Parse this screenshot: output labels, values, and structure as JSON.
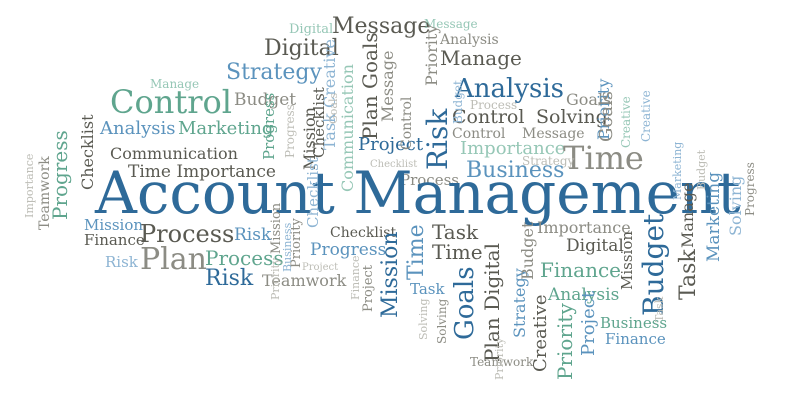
{
  "title": "Account Management",
  "colors": {
    "dark_blue": "#2e6a99",
    "blue": "#5b93bd",
    "light_blue": "#8db4d3",
    "teal": "#5fa58e",
    "light_teal": "#96c7b6",
    "dark_gray": "#5a5a52",
    "gray": "#8c8c84",
    "light_gray": "#bdbdb6"
  },
  "words": [
    {
      "text": "Digital",
      "color": "c5",
      "vertical": false
    },
    {
      "text": "Message",
      "color": "c6",
      "vertical": false
    },
    {
      "text": "Message",
      "color": "c5",
      "vertical": false
    },
    {
      "text": "Digital",
      "color": "c6",
      "vertical": false
    },
    {
      "text": "Analysis",
      "color": "c7",
      "vertical": false
    },
    {
      "text": "Manage",
      "color": "c6",
      "vertical": false
    },
    {
      "text": "Strategy",
      "color": "c2",
      "vertical": false
    },
    {
      "text": "Manage",
      "color": "c5",
      "vertical": false
    },
    {
      "text": "Control",
      "color": "c4",
      "vertical": false
    },
    {
      "text": "Budget",
      "color": "c7",
      "vertical": false
    },
    {
      "text": "Analysis",
      "color": "c1",
      "vertical": false
    },
    {
      "text": "Goals",
      "color": "c7",
      "vertical": false
    },
    {
      "text": "Process",
      "color": "c8",
      "vertical": false
    },
    {
      "text": "Control",
      "color": "c6",
      "vertical": false
    },
    {
      "text": "Solving",
      "color": "c6",
      "vertical": false
    },
    {
      "text": "Analysis",
      "color": "c2",
      "vertical": false
    },
    {
      "text": "Marketing",
      "color": "c4",
      "vertical": false
    },
    {
      "text": "Control",
      "color": "c7",
      "vertical": false
    },
    {
      "text": "Message",
      "color": "c7",
      "vertical": false
    },
    {
      "text": "Project",
      "color": "c1",
      "vertical": false
    },
    {
      "text": "Importance",
      "color": "c5",
      "vertical": false
    },
    {
      "text": "Communication",
      "color": "c6",
      "vertical": false
    },
    {
      "text": "Time",
      "color": "c7",
      "vertical": false
    },
    {
      "text": "Strategy",
      "color": "c8",
      "vertical": false
    },
    {
      "text": "Time Importance",
      "color": "c6",
      "vertical": false
    },
    {
      "text": "Business",
      "color": "c2",
      "vertical": false
    },
    {
      "text": "Process",
      "color": "c7",
      "vertical": false
    },
    {
      "text": "Account Management",
      "color": "c1",
      "vertical": false
    },
    {
      "text": "Mission",
      "color": "c2",
      "vertical": false
    },
    {
      "text": "Finance",
      "color": "c6",
      "vertical": false
    },
    {
      "text": "Process",
      "color": "c6",
      "vertical": false
    },
    {
      "text": "Risk",
      "color": "c2",
      "vertical": false
    },
    {
      "text": "Risk",
      "color": "c3",
      "vertical": false
    },
    {
      "text": "Plan",
      "color": "c7",
      "vertical": false
    },
    {
      "text": "Process",
      "color": "c4",
      "vertical": false
    },
    {
      "text": "Risk",
      "color": "c1",
      "vertical": false
    },
    {
      "text": "Teamwork",
      "color": "c7",
      "vertical": false
    },
    {
      "text": "Progress",
      "color": "c2",
      "vertical": false
    },
    {
      "text": "Checklist",
      "color": "c6",
      "vertical": false
    },
    {
      "text": "Task",
      "color": "c6",
      "vertical": false
    },
    {
      "text": "Time",
      "color": "c6",
      "vertical": false
    },
    {
      "text": "Importance",
      "color": "c7",
      "vertical": false
    },
    {
      "text": "Digital",
      "color": "c6",
      "vertical": false
    },
    {
      "text": "Finance",
      "color": "c4",
      "vertical": false
    },
    {
      "text": "Analysis",
      "color": "c4",
      "vertical": false
    },
    {
      "text": "Task",
      "color": "c2",
      "vertical": false
    },
    {
      "text": "Business",
      "color": "c4",
      "vertical": false
    },
    {
      "text": "Finance",
      "color": "c2",
      "vertical": false
    },
    {
      "text": "Teamwork",
      "color": "c7",
      "vertical": false
    },
    {
      "text": "Project",
      "color": "c8",
      "vertical": false
    },
    {
      "text": "Checklist",
      "color": "c8",
      "vertical": false
    },
    {
      "text": "Plan Goals",
      "color": "c6",
      "vertical": true
    },
    {
      "text": "Priority",
      "color": "c7",
      "vertical": true
    },
    {
      "text": "Task Creative",
      "color": "c3",
      "vertical": true
    },
    {
      "text": "Message",
      "color": "c7",
      "vertical": true
    },
    {
      "text": "Risk",
      "color": "c1",
      "vertical": true
    },
    {
      "text": "Priority",
      "color": "c2",
      "vertical": true
    },
    {
      "text": "Communication",
      "color": "c5",
      "vertical": true
    },
    {
      "text": "Mission",
      "color": "c6",
      "vertical": true
    },
    {
      "text": "Progress",
      "color": "c8",
      "vertical": true
    },
    {
      "text": "Control",
      "color": "c7",
      "vertical": true
    },
    {
      "text": "Checklist",
      "color": "c3",
      "vertical": true
    },
    {
      "text": "Checklist",
      "color": "c6",
      "vertical": true
    },
    {
      "text": "Progress",
      "color": "c4",
      "vertical": true
    },
    {
      "text": "Goals",
      "color": "c7",
      "vertical": true
    },
    {
      "text": "Creative",
      "color": "c5",
      "vertical": true
    },
    {
      "text": "Mission",
      "color": "c1",
      "vertical": true
    },
    {
      "text": "Time",
      "color": "c2",
      "vertical": true
    },
    {
      "text": "Goals",
      "color": "c1",
      "vertical": true
    },
    {
      "text": "Plan Digital",
      "color": "c6",
      "vertical": true
    },
    {
      "text": "Strategy",
      "color": "c2",
      "vertical": true
    },
    {
      "text": "Budget",
      "color": "c7",
      "vertical": true
    },
    {
      "text": "Creative",
      "color": "c6",
      "vertical": true
    },
    {
      "text": "Priority",
      "color": "c4",
      "vertical": true
    },
    {
      "text": "Project",
      "color": "c2",
      "vertical": true
    },
    {
      "text": "Solving",
      "color": "c7",
      "vertical": true
    },
    {
      "text": "Budget",
      "color": "c1",
      "vertical": true
    },
    {
      "text": "Mission",
      "color": "c6",
      "vertical": true
    },
    {
      "text": "Task",
      "color": "c6",
      "vertical": true
    },
    {
      "text": "Manage",
      "color": "c6",
      "vertical": true
    },
    {
      "text": "Marketing",
      "color": "c2",
      "vertical": true
    },
    {
      "text": "Solving",
      "color": "c3",
      "vertical": true
    },
    {
      "text": "Progress",
      "color": "c7",
      "vertical": true
    },
    {
      "text": "Progress",
      "color": "c4",
      "vertical": true
    },
    {
      "text": "Checklist",
      "color": "c6",
      "vertical": true
    },
    {
      "text": "Teamwork",
      "color": "c7",
      "vertical": true
    },
    {
      "text": "Importance",
      "color": "c8",
      "vertical": true
    },
    {
      "text": "Priority",
      "color": "c7",
      "vertical": true
    },
    {
      "text": "Mission",
      "color": "c7",
      "vertical": true
    },
    {
      "text": "Business",
      "color": "c3",
      "vertical": true
    },
    {
      "text": "Priority",
      "color": "c8",
      "vertical": true
    },
    {
      "text": "Finance",
      "color": "c8",
      "vertical": true
    },
    {
      "text": "Project",
      "color": "c7",
      "vertical": true
    },
    {
      "text": "Budget",
      "color": "c3",
      "vertical": true
    },
    {
      "text": "Creative",
      "color": "c3",
      "vertical": true
    },
    {
      "text": "Marketing",
      "color": "c3",
      "vertical": true
    },
    {
      "text": "Budget",
      "color": "c8",
      "vertical": true
    },
    {
      "text": "Goals",
      "color": "c8",
      "vertical": true
    },
    {
      "text": "Priority",
      "color": "c8",
      "vertical": true
    },
    {
      "text": "Task",
      "color": "c8",
      "vertical": true
    },
    {
      "text": "Solving",
      "color": "c8",
      "vertical": true
    }
  ]
}
